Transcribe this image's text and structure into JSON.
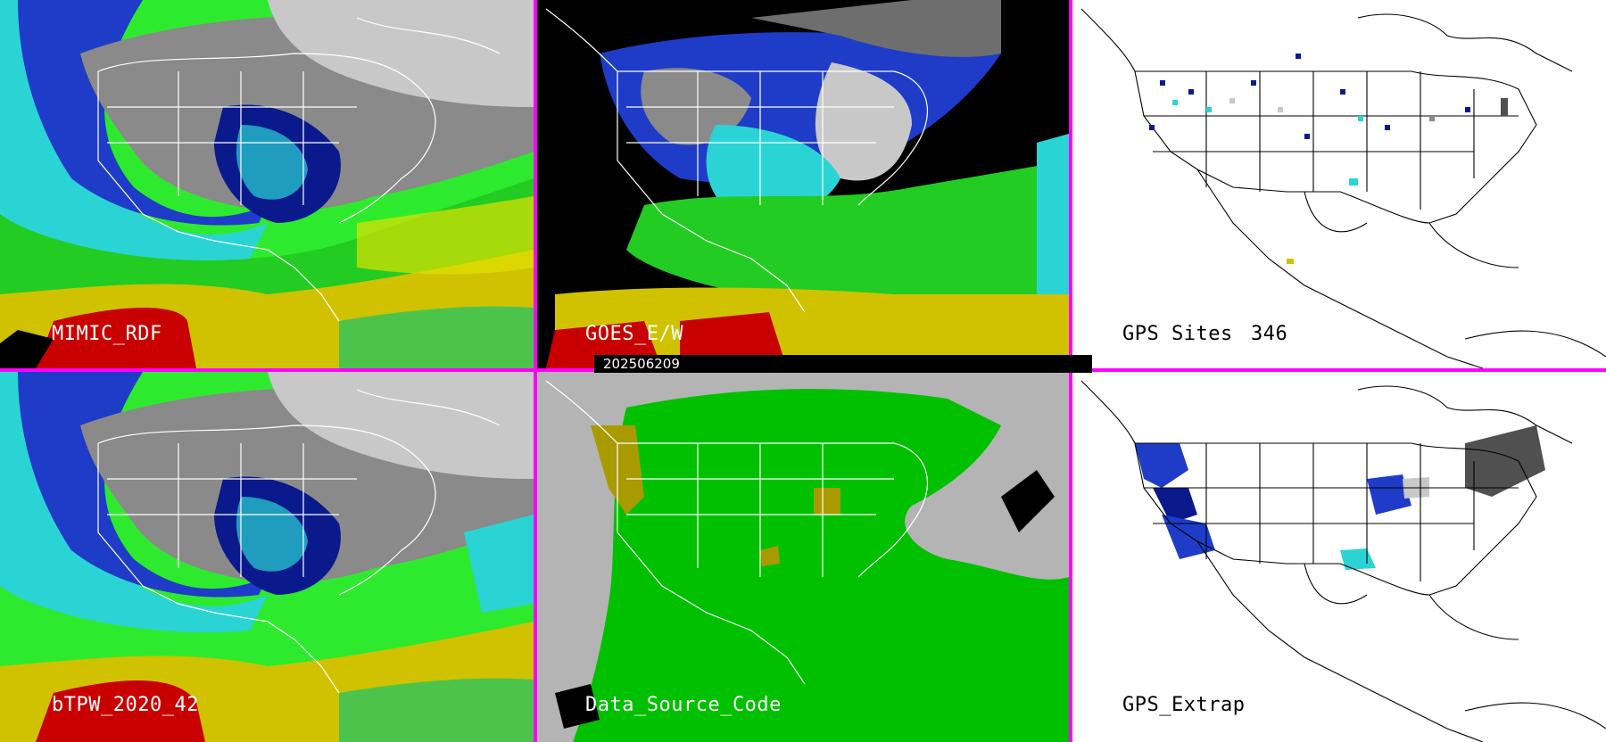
{
  "panels": {
    "top_left": {
      "label": "MIMIC_RDF"
    },
    "top_center": {
      "label": "GOES_E/W"
    },
    "top_right": {
      "label": "GPS Sites",
      "count": "346"
    },
    "bottom_left": {
      "label": "bTPW_2020_42"
    },
    "bottom_center": {
      "label": "Data_Source_Code"
    },
    "bottom_right": {
      "label": "GPS_Extrap"
    }
  },
  "timestamp": "202506209",
  "colors": {
    "divider": "#ff00ff",
    "tpw_scale": [
      "#8a8a8a",
      "#0a1a8c",
      "#1e3cc8",
      "#2ad4d4",
      "#4cc44c",
      "#2eea2e",
      "#d0c200",
      "#e0e000",
      "#c80000"
    ],
    "data_source": {
      "background": "#b4b4b4",
      "satellite": "#00c000",
      "gps": "#a89a00",
      "missing": "#000000"
    }
  },
  "icons": [
    "coastline-overlay",
    "state-borders-overlay"
  ]
}
